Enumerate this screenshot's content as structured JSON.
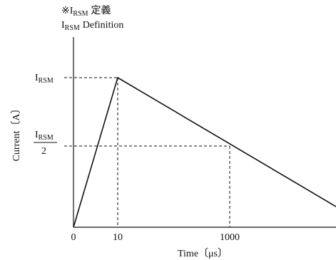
{
  "title": {
    "mark": "※",
    "symbol": "I",
    "symbol_sub": "RSM",
    "suffix_jp": "定義",
    "suffix_en": "Definition"
  },
  "y_axis": {
    "label": "Current〔A〕",
    "peak_label": "I",
    "peak_sub": "RSM",
    "half_numerator": "I",
    "half_numerator_sub": "RSM",
    "half_denominator": "2"
  },
  "x_axis": {
    "label": "Time〔μs〕",
    "ticks": [
      "0",
      "10",
      "1000"
    ]
  },
  "waveform": {
    "points": [
      {
        "t": "0",
        "current": "0"
      },
      {
        "t": "10",
        "current": "IRSM"
      },
      {
        "t": "1000",
        "current": "IRSM/2"
      }
    ]
  }
}
